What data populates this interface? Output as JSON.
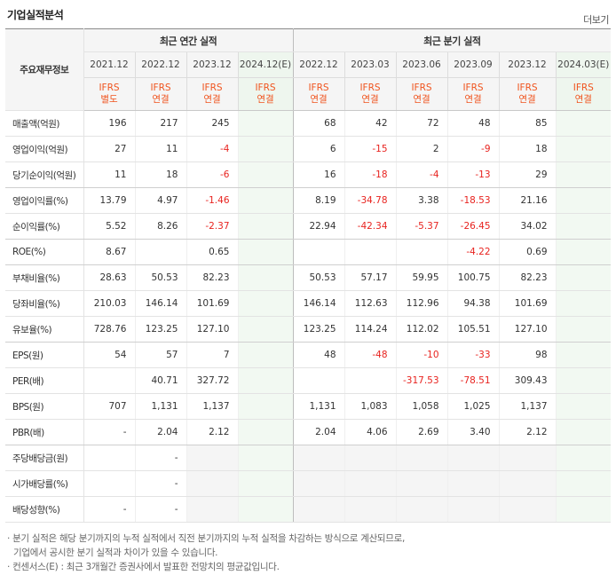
{
  "title": "기업실적분석",
  "more_label": "더보기",
  "corner_label": "주요재무정보",
  "groups": {
    "annual": "최근 연간 실적",
    "quarter": "최근 분기 실적"
  },
  "annual_periods": [
    "2021.12",
    "2022.12",
    "2023.12",
    "2024.12(E)"
  ],
  "quarter_periods": [
    "2022.12",
    "2023.03",
    "2023.06",
    "2023.09",
    "2023.12",
    "2024.03(E)"
  ],
  "annual_ifrs": [
    [
      "IFRS",
      "별도"
    ],
    [
      "IFRS",
      "연결"
    ],
    [
      "IFRS",
      "연결"
    ],
    [
      "IFRS",
      "연결"
    ]
  ],
  "quarter_ifrs": [
    [
      "IFRS",
      "연결"
    ],
    [
      "IFRS",
      "연결"
    ],
    [
      "IFRS",
      "연결"
    ],
    [
      "IFRS",
      "연결"
    ],
    [
      "IFRS",
      "연결"
    ],
    [
      "IFRS",
      "연결"
    ]
  ],
  "rows": [
    {
      "label": "매출액(억원)",
      "annual": [
        "196",
        "217",
        "245",
        ""
      ],
      "quarter": [
        "68",
        "42",
        "72",
        "48",
        "85",
        ""
      ]
    },
    {
      "label": "영업이익(억원)",
      "annual": [
        "27",
        "11",
        "-4",
        ""
      ],
      "quarter": [
        "6",
        "-15",
        "2",
        "-9",
        "18",
        ""
      ]
    },
    {
      "label": "당기순이익(억원)",
      "annual": [
        "11",
        "18",
        "-6",
        ""
      ],
      "quarter": [
        "16",
        "-18",
        "-4",
        "-13",
        "29",
        ""
      ]
    },
    {
      "label": "영업이익률(%)",
      "annual": [
        "13.79",
        "4.97",
        "-1.46",
        ""
      ],
      "quarter": [
        "8.19",
        "-34.78",
        "3.38",
        "-18.53",
        "21.16",
        ""
      ]
    },
    {
      "label": "순이익률(%)",
      "annual": [
        "5.52",
        "8.26",
        "-2.37",
        ""
      ],
      "quarter": [
        "22.94",
        "-42.34",
        "-5.37",
        "-26.45",
        "34.02",
        ""
      ]
    },
    {
      "label": "ROE(%)",
      "annual": [
        "8.67",
        "",
        "0.65",
        ""
      ],
      "quarter": [
        "",
        "",
        "",
        "-4.22",
        "0.69",
        ""
      ]
    },
    {
      "label": "부채비율(%)",
      "annual": [
        "28.63",
        "50.53",
        "82.23",
        ""
      ],
      "quarter": [
        "50.53",
        "57.17",
        "59.95",
        "100.75",
        "82.23",
        ""
      ]
    },
    {
      "label": "당좌비율(%)",
      "annual": [
        "210.03",
        "146.14",
        "101.69",
        ""
      ],
      "quarter": [
        "146.14",
        "112.63",
        "112.96",
        "94.38",
        "101.69",
        ""
      ]
    },
    {
      "label": "유보율(%)",
      "annual": [
        "728.76",
        "123.25",
        "127.10",
        ""
      ],
      "quarter": [
        "123.25",
        "114.24",
        "112.02",
        "105.51",
        "127.10",
        ""
      ]
    },
    {
      "label": "EPS(원)",
      "annual": [
        "54",
        "57",
        "7",
        ""
      ],
      "quarter": [
        "48",
        "-48",
        "-10",
        "-33",
        "98",
        ""
      ]
    },
    {
      "label": "PER(배)",
      "annual": [
        "",
        "40.71",
        "327.72",
        ""
      ],
      "quarter": [
        "",
        "",
        "-317.53",
        "-78.51",
        "309.43",
        ""
      ]
    },
    {
      "label": "BPS(원)",
      "annual": [
        "707",
        "1,131",
        "1,137",
        ""
      ],
      "quarter": [
        "1,131",
        "1,083",
        "1,058",
        "1,025",
        "1,137",
        ""
      ]
    },
    {
      "label": "PBR(배)",
      "annual": [
        "-",
        "2.04",
        "2.12",
        ""
      ],
      "quarter": [
        "2.04",
        "4.06",
        "2.69",
        "3.40",
        "2.12",
        ""
      ]
    },
    {
      "label": "주당배당금(원)",
      "annual": [
        "",
        "-",
        "",
        ""
      ],
      "quarter": [
        "",
        "",
        "",
        "",
        "",
        ""
      ]
    },
    {
      "label": "시가배당률(%)",
      "annual": [
        "",
        "-",
        "",
        ""
      ],
      "quarter": [
        "",
        "",
        "",
        "",
        "",
        ""
      ]
    },
    {
      "label": "배당성향(%)",
      "annual": [
        "-",
        "-",
        "",
        ""
      ],
      "quarter": [
        "",
        "",
        "",
        "",
        "",
        ""
      ]
    }
  ],
  "notes": {
    "line1": "· 분기 실적은 해당 분기까지의 누적 실적에서 직전 분기까지의 누적 실적을 차감하는 방식으로 계산되므로,",
    "line2": "기업에서 공시한 분기 실적과 차이가 있을 수 있습니다.",
    "line3": "· 컨센서스(E) : 최근 3개월간 증권사에서 발표한 전망치의 평균값입니다."
  },
  "colors": {
    "ifrs": "#f0541e",
    "negative": "#e8231f",
    "estimate_bg": "#f2f9f2"
  }
}
